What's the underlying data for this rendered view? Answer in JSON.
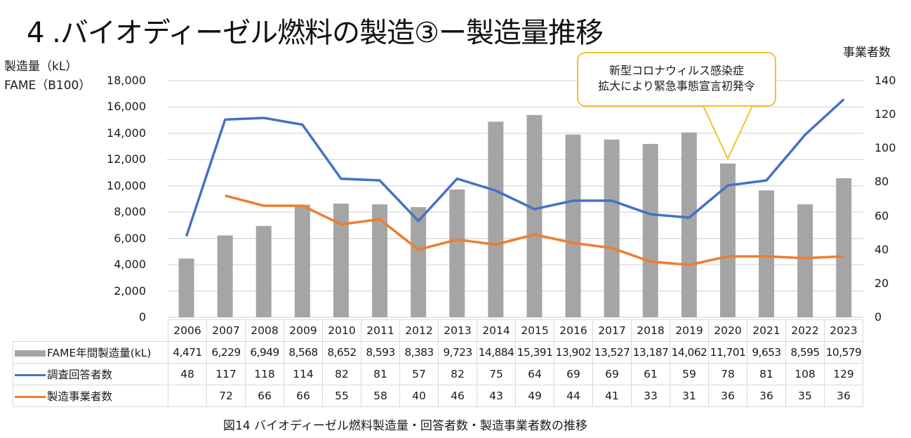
{
  "page": {
    "title": "4 .バイオディーゼル燃料の製造③ー製造量推移",
    "caption": "図14 バイオディーゼル燃料製造量・回答者数・製造事業者数の推移",
    "callout_line1": "新型コロナウィルス感染症",
    "callout_line2": "拡大により緊急事態宣言初発令"
  },
  "colors": {
    "bar": "#a5a5a5",
    "respondents": "#4472c4",
    "manufacturers": "#ed7d31",
    "callout_border": "#f5c02c",
    "grid": "#d9d9d9"
  },
  "chart_data": {
    "type": "bar",
    "title": "4 .バイオディーゼル燃料の製造③ー製造量推移",
    "ylabel": "製造量（kL）FAME（B100）",
    "ylabel_line1": "製造量（kL）",
    "ylabel_line2": "FAME（B100）",
    "y2label": "事業者数",
    "ylim": [
      0,
      18000
    ],
    "y2lim": [
      0,
      140
    ],
    "yticks": [
      "0",
      "2,000",
      "4,000",
      "6,000",
      "8,000",
      "10,000",
      "12,000",
      "14,000",
      "16,000",
      "18,000"
    ],
    "y2ticks": [
      "0",
      "20",
      "40",
      "60",
      "80",
      "100",
      "120",
      "140"
    ],
    "grid": true,
    "legend": "data-table-bottom",
    "categories": [
      "2006",
      "2007",
      "2008",
      "2009",
      "2010",
      "2011",
      "2012",
      "2013",
      "2014",
      "2015",
      "2016",
      "2017",
      "2018",
      "2019",
      "2020",
      "2021",
      "2022",
      "2023"
    ],
    "series": [
      {
        "name": "FAME年間製造量(kL)",
        "type": "bar",
        "axis": "left",
        "values": [
          4471,
          6229,
          6949,
          8568,
          8652,
          8593,
          8383,
          9723,
          14884,
          15391,
          13902,
          13527,
          13187,
          14062,
          11701,
          9653,
          8595,
          10579
        ],
        "labels": [
          "4,471",
          "6,229",
          "6,949",
          "8,568",
          "8,652",
          "8,593",
          "8,383",
          "9,723",
          "14,884",
          "15,391",
          "13,902",
          "13,527",
          "13,187",
          "14,062",
          "11,701",
          "9,653",
          "8,595",
          "10,579"
        ]
      },
      {
        "name": "調査回答者数",
        "type": "line",
        "axis": "right",
        "values": [
          48,
          117,
          118,
          114,
          82,
          81,
          57,
          82,
          75,
          64,
          69,
          69,
          61,
          59,
          78,
          81,
          108,
          129
        ],
        "labels": [
          "48",
          "117",
          "118",
          "114",
          "82",
          "81",
          "57",
          "82",
          "75",
          "64",
          "69",
          "69",
          "61",
          "59",
          "78",
          "81",
          "108",
          "129"
        ]
      },
      {
        "name": "製造事業者数",
        "type": "line",
        "axis": "right",
        "values": [
          null,
          72,
          66,
          66,
          55,
          58,
          40,
          46,
          43,
          49,
          44,
          41,
          33,
          31,
          36,
          36,
          35,
          36
        ],
        "labels": [
          "",
          "72",
          "66",
          "66",
          "55",
          "58",
          "40",
          "46",
          "43",
          "49",
          "44",
          "41",
          "33",
          "31",
          "36",
          "36",
          "35",
          "36"
        ]
      }
    ],
    "annotation": {
      "text": "新型コロナウィルス感染症 拡大により緊急事態宣言初発令",
      "points_to": "2020"
    }
  }
}
